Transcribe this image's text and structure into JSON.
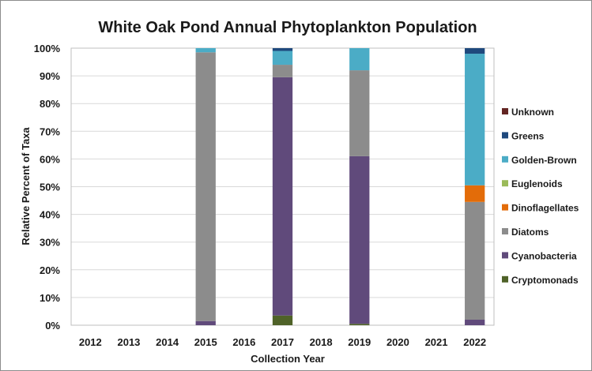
{
  "chart_data": {
    "type": "bar",
    "stacked": true,
    "title": "White Oak Pond Annual Phytoplankton Population",
    "xlabel": "Collection Year",
    "ylabel": "Relative Percent of Taxa",
    "ylim": [
      0,
      100
    ],
    "yticks": [
      "0%",
      "10%",
      "20%",
      "30%",
      "40%",
      "50%",
      "60%",
      "70%",
      "80%",
      "90%",
      "100%"
    ],
    "grid": true,
    "legend_position": "right",
    "categories": [
      "2012",
      "2013",
      "2014",
      "2015",
      "2016",
      "2017",
      "2018",
      "2019",
      "2020",
      "2021",
      "2022"
    ],
    "series": [
      {
        "name": "Cryptomonads",
        "color": "#4f6228",
        "values": [
          0,
          0,
          0,
          0,
          0,
          3.5,
          0,
          0.5,
          0,
          0,
          0
        ]
      },
      {
        "name": "Cyanobacteria",
        "color": "#604a7b",
        "values": [
          0,
          0,
          0,
          1.5,
          0,
          86,
          0,
          60.5,
          0,
          0,
          2
        ]
      },
      {
        "name": "Diatoms",
        "color": "#8c8c8c",
        "values": [
          0,
          0,
          0,
          97,
          0,
          4.5,
          0,
          31,
          0,
          0,
          42.5
        ]
      },
      {
        "name": "Dinoflagellates",
        "color": "#e36c09",
        "values": [
          0,
          0,
          0,
          0,
          0,
          0,
          0,
          0,
          0,
          0,
          6
        ]
      },
      {
        "name": "Euglenoids",
        "color": "#9bbb59",
        "values": [
          0,
          0,
          0,
          0,
          0,
          0,
          0,
          0,
          0,
          0,
          0
        ]
      },
      {
        "name": "Golden-Brown",
        "color": "#4bacc6",
        "values": [
          0,
          0,
          0,
          1.5,
          0,
          5,
          0,
          8,
          0,
          0,
          47.5
        ]
      },
      {
        "name": "Greens",
        "color": "#1f497d",
        "values": [
          0,
          0,
          0,
          0,
          0,
          1,
          0,
          0,
          0,
          0,
          2
        ]
      },
      {
        "name": "Unknown",
        "color": "#632523",
        "values": [
          0,
          0,
          0,
          0,
          0,
          0,
          0,
          0,
          0,
          0,
          0
        ]
      }
    ]
  }
}
